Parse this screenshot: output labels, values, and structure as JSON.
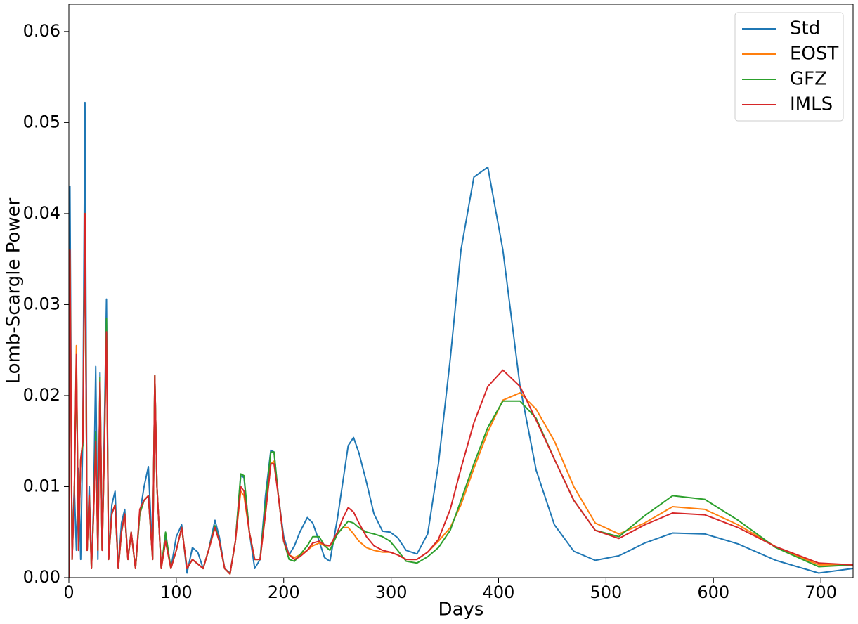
{
  "chart_data": {
    "type": "line",
    "xlabel": "Days",
    "ylabel": "Lomb-Scargle Power",
    "x": [
      0,
      1,
      3,
      5,
      7,
      9,
      11,
      13,
      15,
      17,
      19,
      21,
      23,
      25,
      27,
      29,
      31,
      33,
      35,
      37,
      40,
      43,
      46,
      49,
      52,
      55,
      58,
      62,
      66,
      70,
      74,
      78,
      80,
      82,
      86,
      90,
      95,
      100,
      105,
      110,
      115,
      120,
      125,
      130,
      136,
      140,
      145,
      150,
      155,
      160,
      163,
      168,
      173,
      178,
      183,
      188,
      191,
      195,
      200,
      205,
      210,
      215,
      222,
      227,
      233,
      238,
      243,
      250,
      255,
      260,
      265,
      270,
      277,
      284,
      292,
      299,
      306,
      314,
      324,
      334,
      344,
      355,
      365,
      377,
      390,
      404,
      420,
      435,
      452,
      470,
      490,
      512,
      536,
      562,
      592,
      623,
      658,
      698,
      730
    ],
    "series": [
      {
        "name": "Std",
        "color": "#1f77b4",
        "values": [
          0,
          0.043,
          0.002,
          0.01,
          0.003,
          0.012,
          0.002,
          0.016,
          0.0522,
          0.003,
          0.01,
          0.001,
          0.008,
          0.0232,
          0.002,
          0.0225,
          0.003,
          0.0162,
          0.0306,
          0.002,
          0.008,
          0.0095,
          0.001,
          0.006,
          0.0075,
          0.002,
          0.005,
          0.001,
          0.007,
          0.01,
          0.0122,
          0.002,
          0.0222,
          0.01,
          0.001,
          0.0045,
          0.001,
          0.0045,
          0.0058,
          0.0005,
          0.0033,
          0.0028,
          0.001,
          0.003,
          0.0063,
          0.0045,
          0.001,
          0.0005,
          0.004,
          0.0112,
          0.011,
          0.005,
          0.001,
          0.002,
          0.009,
          0.014,
          0.0138,
          0.009,
          0.0045,
          0.0025,
          0.0035,
          0.005,
          0.0066,
          0.006,
          0.004,
          0.0022,
          0.0018,
          0.0065,
          0.0105,
          0.0145,
          0.0154,
          0.0137,
          0.0105,
          0.007,
          0.0051,
          0.005,
          0.0044,
          0.003,
          0.0026,
          0.0048,
          0.0125,
          0.024,
          0.036,
          0.044,
          0.0451,
          0.036,
          0.021,
          0.0118,
          0.0058,
          0.0029,
          0.0019,
          0.0024,
          0.0038,
          0.0049,
          0.0048,
          0.0037,
          0.0019,
          0.0005,
          0.001
        ]
      },
      {
        "name": "EOST",
        "color": "#ff7f0e",
        "values": [
          0,
          0.036,
          0.002,
          0.009,
          0.0255,
          0.003,
          0.013,
          0.015,
          0.04,
          0.003,
          0.009,
          0.001,
          0.007,
          0.015,
          0.003,
          0.022,
          0.003,
          0.014,
          0.027,
          0.002,
          0.007,
          0.008,
          0.001,
          0.005,
          0.007,
          0.002,
          0.005,
          0.001,
          0.007,
          0.0085,
          0.009,
          0.002,
          0.0222,
          0.01,
          0.001,
          0.004,
          0.001,
          0.003,
          0.0055,
          0.001,
          0.002,
          0.0015,
          0.001,
          0.003,
          0.0055,
          0.004,
          0.001,
          0.0004,
          0.004,
          0.0095,
          0.009,
          0.005,
          0.002,
          0.002,
          0.007,
          0.0125,
          0.0128,
          0.009,
          0.004,
          0.0025,
          0.0022,
          0.0025,
          0.003,
          0.0035,
          0.0038,
          0.0035,
          0.0035,
          0.0048,
          0.0055,
          0.0055,
          0.0048,
          0.004,
          0.0033,
          0.003,
          0.0028,
          0.0028,
          0.0025,
          0.002,
          0.002,
          0.0028,
          0.004,
          0.0055,
          0.008,
          0.012,
          0.016,
          0.0195,
          0.0203,
          0.0185,
          0.015,
          0.01,
          0.006,
          0.0048,
          0.006,
          0.0078,
          0.0075,
          0.0058,
          0.0034,
          0.0014,
          0.0014
        ]
      },
      {
        "name": "GFZ",
        "color": "#2ca02c",
        "values": [
          0,
          0.0355,
          0.002,
          0.009,
          0.024,
          0.003,
          0.013,
          0.0145,
          0.04,
          0.003,
          0.009,
          0.001,
          0.007,
          0.016,
          0.003,
          0.022,
          0.003,
          0.014,
          0.0285,
          0.002,
          0.007,
          0.008,
          0.001,
          0.005,
          0.007,
          0.002,
          0.005,
          0.001,
          0.007,
          0.0085,
          0.009,
          0.002,
          0.0222,
          0.01,
          0.001,
          0.005,
          0.001,
          0.003,
          0.0055,
          0.001,
          0.002,
          0.0015,
          0.001,
          0.003,
          0.0057,
          0.004,
          0.001,
          0.0004,
          0.004,
          0.0114,
          0.0112,
          0.005,
          0.002,
          0.002,
          0.008,
          0.0138,
          0.0138,
          0.009,
          0.004,
          0.002,
          0.0018,
          0.0025,
          0.0035,
          0.0045,
          0.0045,
          0.0035,
          0.003,
          0.0048,
          0.0055,
          0.0062,
          0.006,
          0.0055,
          0.005,
          0.0048,
          0.0045,
          0.004,
          0.003,
          0.0018,
          0.0016,
          0.0023,
          0.0033,
          0.0052,
          0.0085,
          0.0125,
          0.0165,
          0.0194,
          0.0194,
          0.0175,
          0.013,
          0.0085,
          0.0052,
          0.0045,
          0.0068,
          0.009,
          0.0086,
          0.0063,
          0.0033,
          0.0012,
          0.0014
        ]
      },
      {
        "name": "IMLS",
        "color": "#d62728",
        "values": [
          0,
          0.036,
          0.002,
          0.009,
          0.0245,
          0.003,
          0.013,
          0.015,
          0.04,
          0.003,
          0.009,
          0.001,
          0.007,
          0.015,
          0.003,
          0.0215,
          0.003,
          0.014,
          0.027,
          0.002,
          0.007,
          0.008,
          0.001,
          0.005,
          0.007,
          0.002,
          0.005,
          0.001,
          0.0075,
          0.0085,
          0.009,
          0.002,
          0.0222,
          0.01,
          0.001,
          0.004,
          0.001,
          0.003,
          0.0055,
          0.001,
          0.002,
          0.0015,
          0.001,
          0.003,
          0.0055,
          0.004,
          0.001,
          0.0004,
          0.004,
          0.01,
          0.0095,
          0.005,
          0.002,
          0.002,
          0.007,
          0.0125,
          0.0125,
          0.009,
          0.004,
          0.0025,
          0.002,
          0.0023,
          0.003,
          0.0038,
          0.004,
          0.0036,
          0.0035,
          0.005,
          0.0065,
          0.0077,
          0.0072,
          0.006,
          0.0045,
          0.0035,
          0.003,
          0.0028,
          0.0025,
          0.002,
          0.002,
          0.0028,
          0.0042,
          0.0075,
          0.012,
          0.017,
          0.021,
          0.0228,
          0.021,
          0.0173,
          0.013,
          0.0085,
          0.0052,
          0.0043,
          0.0058,
          0.0071,
          0.0069,
          0.0055,
          0.0034,
          0.0016,
          0.0014
        ]
      }
    ],
    "xlim": [
      0,
      730
    ],
    "xticks": [
      0,
      100,
      200,
      300,
      400,
      500,
      600,
      700
    ],
    "ylim": [
      0,
      0.063
    ],
    "yticks": [
      {
        "value": 0,
        "label": "0.00"
      },
      0.01,
      0.02,
      0.03,
      0.04,
      0.05,
      0.06
    ],
    "grid": false,
    "legend": "upper right"
  }
}
